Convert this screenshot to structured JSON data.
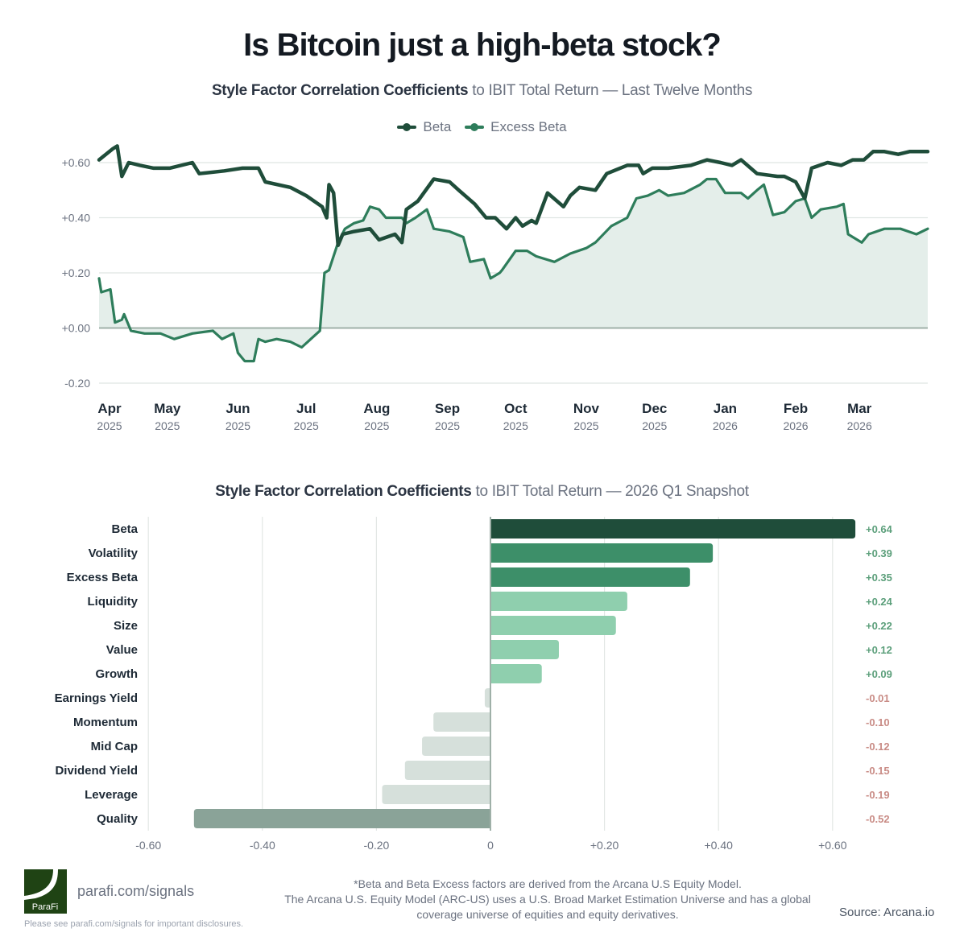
{
  "title": "Is Bitcoin just a high-beta stock?",
  "line_chart_subtitle": {
    "bold": "Style Factor Correlation Coefficients",
    "rest": " to IBIT Total Return — Last Twelve Months"
  },
  "bar_chart_subtitle": {
    "bold": "Style Factor Correlation Coefficients",
    "rest": " to IBIT Total Return — 2026 Q1 Snapshot"
  },
  "colors": {
    "beta": "#1f4d3a",
    "excess_beta": "#2e7d5b",
    "area_fill": "#e4eeea",
    "positive_label": "#5c9f7b",
    "negative_label": "#c98c86"
  },
  "chart_data": [
    {
      "type": "line",
      "legend": [
        "Beta",
        "Excess Beta"
      ],
      "legend_placement": "top-center",
      "grid": true,
      "ylim": [
        -0.2,
        0.6
      ],
      "yticks": [
        "+0.60",
        "+0.40",
        "+0.20",
        "+0.00",
        "-0.20"
      ],
      "ytick_values": [
        0.6,
        0.4,
        0.2,
        0.0,
        -0.2
      ],
      "xlim": [
        "2025-04-01",
        "2026-03-31"
      ],
      "xticks": [
        {
          "date": "2025-04-01",
          "month": "Apr",
          "year": "2025"
        },
        {
          "date": "2025-05-01",
          "month": "May",
          "year": "2025"
        },
        {
          "date": "2025-06-01",
          "month": "Jun",
          "year": "2025"
        },
        {
          "date": "2025-07-01",
          "month": "Jul",
          "year": "2025"
        },
        {
          "date": "2025-08-01",
          "month": "Aug",
          "year": "2025"
        },
        {
          "date": "2025-09-01",
          "month": "Sep",
          "year": "2025"
        },
        {
          "date": "2025-10-01",
          "month": "Oct",
          "year": "2025"
        },
        {
          "date": "2025-11-01",
          "month": "Nov",
          "year": "2025"
        },
        {
          "date": "2025-12-01",
          "month": "Dec",
          "year": "2025"
        },
        {
          "date": "2026-01-01",
          "month": "Jan",
          "year": "2026"
        },
        {
          "date": "2026-02-01",
          "month": "Feb",
          "year": "2026"
        },
        {
          "date": "2026-03-01",
          "month": "Mar",
          "year": "2026"
        }
      ],
      "series": [
        {
          "name": "Beta",
          "points": [
            [
              "2025-04-01",
              0.61
            ],
            [
              "2025-04-07",
              0.65
            ],
            [
              "2025-04-09",
              0.66
            ],
            [
              "2025-04-11",
              0.55
            ],
            [
              "2025-04-14",
              0.6
            ],
            [
              "2025-04-19",
              0.59
            ],
            [
              "2025-04-25",
              0.58
            ],
            [
              "2025-05-02",
              0.58
            ],
            [
              "2025-05-12",
              0.6
            ],
            [
              "2025-05-15",
              0.56
            ],
            [
              "2025-05-26",
              0.57
            ],
            [
              "2025-06-03",
              0.58
            ],
            [
              "2025-06-10",
              0.58
            ],
            [
              "2025-06-13",
              0.53
            ],
            [
              "2025-06-24",
              0.51
            ],
            [
              "2025-07-01",
              0.48
            ],
            [
              "2025-07-08",
              0.44
            ],
            [
              "2025-07-10",
              0.4
            ],
            [
              "2025-07-11",
              0.52
            ],
            [
              "2025-07-13",
              0.49
            ],
            [
              "2025-07-15",
              0.3
            ],
            [
              "2025-07-17",
              0.34
            ],
            [
              "2025-07-22",
              0.35
            ],
            [
              "2025-07-29",
              0.36
            ],
            [
              "2025-08-02",
              0.32
            ],
            [
              "2025-08-09",
              0.34
            ],
            [
              "2025-08-12",
              0.31
            ],
            [
              "2025-08-14",
              0.43
            ],
            [
              "2025-08-19",
              0.46
            ],
            [
              "2025-08-26",
              0.54
            ],
            [
              "2025-09-02",
              0.53
            ],
            [
              "2025-09-06",
              0.5
            ],
            [
              "2025-09-13",
              0.45
            ],
            [
              "2025-09-18",
              0.4
            ],
            [
              "2025-09-22",
              0.4
            ],
            [
              "2025-09-27",
              0.36
            ],
            [
              "2025-10-01",
              0.4
            ],
            [
              "2025-10-04",
              0.37
            ],
            [
              "2025-10-08",
              0.39
            ],
            [
              "2025-10-10",
              0.38
            ],
            [
              "2025-10-15",
              0.49
            ],
            [
              "2025-10-22",
              0.44
            ],
            [
              "2025-10-25",
              0.48
            ],
            [
              "2025-10-29",
              0.51
            ],
            [
              "2025-11-05",
              0.5
            ],
            [
              "2025-11-10",
              0.56
            ],
            [
              "2025-11-19",
              0.59
            ],
            [
              "2025-11-24",
              0.59
            ],
            [
              "2025-11-26",
              0.56
            ],
            [
              "2025-11-30",
              0.58
            ],
            [
              "2025-12-07",
              0.58
            ],
            [
              "2025-12-17",
              0.59
            ],
            [
              "2025-12-24",
              0.61
            ],
            [
              "2025-12-30",
              0.6
            ],
            [
              "2026-01-04",
              0.59
            ],
            [
              "2026-01-08",
              0.61
            ],
            [
              "2026-01-15",
              0.56
            ],
            [
              "2026-01-24",
              0.55
            ],
            [
              "2026-01-27",
              0.55
            ],
            [
              "2026-02-01",
              0.53
            ],
            [
              "2026-02-05",
              0.47
            ],
            [
              "2026-02-08",
              0.58
            ],
            [
              "2026-02-15",
              0.6
            ],
            [
              "2026-02-21",
              0.59
            ],
            [
              "2026-02-26",
              0.61
            ],
            [
              "2026-03-03",
              0.61
            ],
            [
              "2026-03-07",
              0.64
            ],
            [
              "2026-03-12",
              0.64
            ],
            [
              "2026-03-18",
              0.63
            ],
            [
              "2026-03-23",
              0.64
            ],
            [
              "2026-03-31",
              0.64
            ]
          ]
        },
        {
          "name": "Excess Beta",
          "points": [
            [
              "2025-04-01",
              0.18
            ],
            [
              "2025-04-02",
              0.13
            ],
            [
              "2025-04-06",
              0.14
            ],
            [
              "2025-04-08",
              0.02
            ],
            [
              "2025-04-11",
              0.03
            ],
            [
              "2025-04-12",
              0.05
            ],
            [
              "2025-04-15",
              -0.01
            ],
            [
              "2025-04-21",
              -0.02
            ],
            [
              "2025-04-28",
              -0.02
            ],
            [
              "2025-05-04",
              -0.04
            ],
            [
              "2025-05-12",
              -0.02
            ],
            [
              "2025-05-21",
              -0.01
            ],
            [
              "2025-05-25",
              -0.04
            ],
            [
              "2025-05-30",
              -0.02
            ],
            [
              "2025-06-01",
              -0.09
            ],
            [
              "2025-06-04",
              -0.12
            ],
            [
              "2025-06-08",
              -0.12
            ],
            [
              "2025-06-10",
              -0.04
            ],
            [
              "2025-06-13",
              -0.05
            ],
            [
              "2025-06-18",
              -0.04
            ],
            [
              "2025-06-24",
              -0.05
            ],
            [
              "2025-06-29",
              -0.07
            ],
            [
              "2025-07-03",
              -0.04
            ],
            [
              "2025-07-07",
              -0.01
            ],
            [
              "2025-07-09",
              0.2
            ],
            [
              "2025-07-11",
              0.21
            ],
            [
              "2025-07-15",
              0.31
            ],
            [
              "2025-07-18",
              0.36
            ],
            [
              "2025-07-22",
              0.38
            ],
            [
              "2025-07-26",
              0.39
            ],
            [
              "2025-07-29",
              0.44
            ],
            [
              "2025-08-02",
              0.43
            ],
            [
              "2025-08-05",
              0.4
            ],
            [
              "2025-08-09",
              0.4
            ],
            [
              "2025-08-12",
              0.4
            ],
            [
              "2025-08-14",
              0.38
            ],
            [
              "2025-08-18",
              0.4
            ],
            [
              "2025-08-23",
              0.43
            ],
            [
              "2025-08-26",
              0.36
            ],
            [
              "2025-09-02",
              0.35
            ],
            [
              "2025-09-08",
              0.33
            ],
            [
              "2025-09-11",
              0.24
            ],
            [
              "2025-09-17",
              0.25
            ],
            [
              "2025-09-20",
              0.18
            ],
            [
              "2025-09-24",
              0.2
            ],
            [
              "2025-09-25",
              0.21
            ],
            [
              "2025-10-01",
              0.28
            ],
            [
              "2025-10-06",
              0.28
            ],
            [
              "2025-10-10",
              0.26
            ],
            [
              "2025-10-18",
              0.24
            ],
            [
              "2025-10-25",
              0.27
            ],
            [
              "2025-11-01",
              0.29
            ],
            [
              "2025-11-05",
              0.31
            ],
            [
              "2025-11-12",
              0.37
            ],
            [
              "2025-11-19",
              0.4
            ],
            [
              "2025-11-23",
              0.47
            ],
            [
              "2025-11-28",
              0.48
            ],
            [
              "2025-12-03",
              0.5
            ],
            [
              "2025-12-07",
              0.48
            ],
            [
              "2025-12-14",
              0.49
            ],
            [
              "2025-12-21",
              0.52
            ],
            [
              "2025-12-24",
              0.54
            ],
            [
              "2025-12-28",
              0.54
            ],
            [
              "2026-01-01",
              0.49
            ],
            [
              "2026-01-08",
              0.49
            ],
            [
              "2026-01-11",
              0.47
            ],
            [
              "2026-01-15",
              0.5
            ],
            [
              "2026-01-18",
              0.52
            ],
            [
              "2026-01-22",
              0.41
            ],
            [
              "2026-01-27",
              0.42
            ],
            [
              "2026-02-01",
              0.46
            ],
            [
              "2026-02-05",
              0.47
            ],
            [
              "2026-02-08",
              0.4
            ],
            [
              "2026-02-12",
              0.43
            ],
            [
              "2026-02-19",
              0.44
            ],
            [
              "2026-02-22",
              0.45
            ],
            [
              "2026-02-24",
              0.34
            ],
            [
              "2026-03-02",
              0.31
            ],
            [
              "2026-03-05",
              0.34
            ],
            [
              "2026-03-12",
              0.36
            ],
            [
              "2026-03-19",
              0.36
            ],
            [
              "2026-03-26",
              0.34
            ],
            [
              "2026-03-31",
              0.36
            ]
          ]
        }
      ]
    },
    {
      "type": "bar",
      "orientation": "horizontal",
      "grid": true,
      "xlim": [
        -0.6,
        0.6
      ],
      "xticks": [
        "-0.60",
        "-0.40",
        "-0.20",
        "0",
        "+0.20",
        "+0.40",
        "+0.60"
      ],
      "xtick_values": [
        -0.6,
        -0.4,
        -0.2,
        0,
        0.2,
        0.4,
        0.6
      ],
      "categories": [
        "Beta",
        "Volatility",
        "Excess Beta",
        "Liquidity",
        "Size",
        "Value",
        "Growth",
        "Earnings Yield",
        "Momentum",
        "Mid Cap",
        "Dividend Yield",
        "Leverage",
        "Quality"
      ],
      "values": [
        0.64,
        0.39,
        0.35,
        0.24,
        0.22,
        0.12,
        0.09,
        -0.01,
        -0.1,
        -0.12,
        -0.15,
        -0.19,
        -0.52
      ],
      "data_labels": [
        "+0.64",
        "+0.39",
        "+0.35",
        "+0.24",
        "+0.22",
        "+0.12",
        "+0.09",
        "-0.01",
        "-0.10",
        "-0.12",
        "-0.15",
        "-0.19",
        "-0.52"
      ],
      "bar_colors": [
        "#1f4d3a",
        "#3d8f69",
        "#3d8f69",
        "#8fcfae",
        "#8fcfae",
        "#8fcfae",
        "#8fcfae",
        "#d6e0db",
        "#d6e0db",
        "#d6e0db",
        "#d6e0db",
        "#d6e0db",
        "#8aa398"
      ]
    }
  ],
  "footer": {
    "logo_text": "ParaFi",
    "link": "parafi.com/signals",
    "disclosure": "Please see parafi.com/signals for important disclosures.",
    "footnote_lines": [
      "*Beta and Beta Excess factors are derived from the Arcana U.S Equity Model.",
      "The Arcana U.S. Equity Model (ARC-US) uses a U.S. Broad Market Estimation Universe and has a global",
      "coverage universe of equities and equity derivatives."
    ],
    "source": "Source: Arcana.io"
  }
}
